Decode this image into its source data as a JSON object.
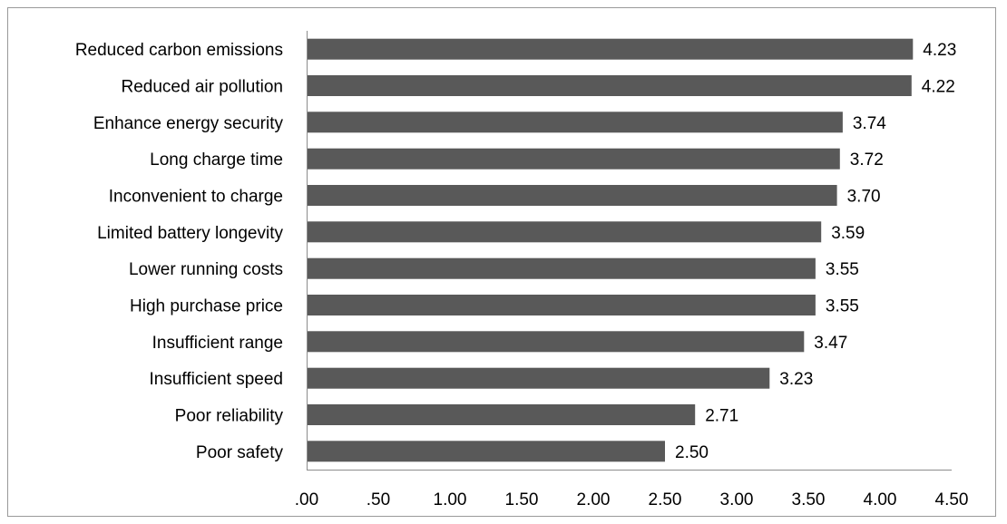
{
  "chart_data": {
    "type": "bar",
    "orientation": "horizontal",
    "categories": [
      "Reduced carbon emissions",
      "Reduced air pollution",
      "Enhance energy security",
      "Long charge time",
      "Inconvenient to charge",
      "Limited battery longevity",
      "Lower running costs",
      "High purchase price",
      "Insufficient range",
      "Insufficient speed",
      "Poor reliability",
      "Poor safety"
    ],
    "values": [
      4.23,
      4.22,
      3.74,
      3.72,
      3.7,
      3.59,
      3.55,
      3.55,
      3.47,
      3.23,
      2.71,
      2.5
    ],
    "value_labels": [
      "4.23",
      "4.22",
      "3.74",
      "3.72",
      "3.70",
      "3.59",
      "3.55",
      "3.55",
      "3.47",
      "3.23",
      "2.71",
      "2.50"
    ],
    "xlim": [
      0,
      4.5
    ],
    "x_ticks": [
      0,
      0.5,
      1.0,
      1.5,
      2.0,
      2.5,
      3.0,
      3.5,
      4.0,
      4.5
    ],
    "x_tick_labels": [
      ".00",
      ".50",
      "1.00",
      "1.50",
      "2.00",
      "2.50",
      "3.00",
      "3.50",
      "4.00",
      "4.50"
    ],
    "title": "",
    "xlabel": "",
    "ylabel": "",
    "grid": false,
    "legend": "none",
    "bar_color": "#595959"
  }
}
